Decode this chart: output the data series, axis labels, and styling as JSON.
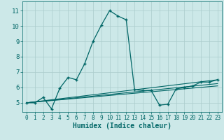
{
  "title": "",
  "xlabel": "Humidex (Indice chaleur)",
  "bg_color": "#cce8e8",
  "grid_color": "#aacccc",
  "line_color": "#006666",
  "xlim": [
    -0.5,
    23.5
  ],
  "ylim": [
    4.4,
    11.6
  ],
  "yticks": [
    5,
    6,
    7,
    8,
    9,
    10,
    11
  ],
  "xticks": [
    0,
    1,
    2,
    3,
    4,
    5,
    6,
    7,
    8,
    9,
    10,
    11,
    12,
    13,
    14,
    15,
    16,
    17,
    18,
    19,
    20,
    21,
    22,
    23
  ],
  "line1_x": [
    0,
    1,
    2,
    3,
    4,
    5,
    6,
    7,
    8,
    9,
    10,
    11,
    12,
    13,
    14,
    15,
    16,
    17,
    18,
    19,
    20,
    21,
    22,
    23
  ],
  "line1_y": [
    5.0,
    5.0,
    5.35,
    4.6,
    5.95,
    6.65,
    6.5,
    7.55,
    9.0,
    10.05,
    11.0,
    10.65,
    10.4,
    5.85,
    5.8,
    5.8,
    4.85,
    4.9,
    5.9,
    6.0,
    6.1,
    6.35,
    6.35,
    6.5
  ],
  "line2_x": [
    0,
    23
  ],
  "line2_y": [
    5.0,
    6.5
  ],
  "line3_x": [
    0,
    23
  ],
  "line3_y": [
    5.0,
    6.25
  ],
  "line4_x": [
    0,
    23
  ],
  "line4_y": [
    5.0,
    6.1
  ]
}
